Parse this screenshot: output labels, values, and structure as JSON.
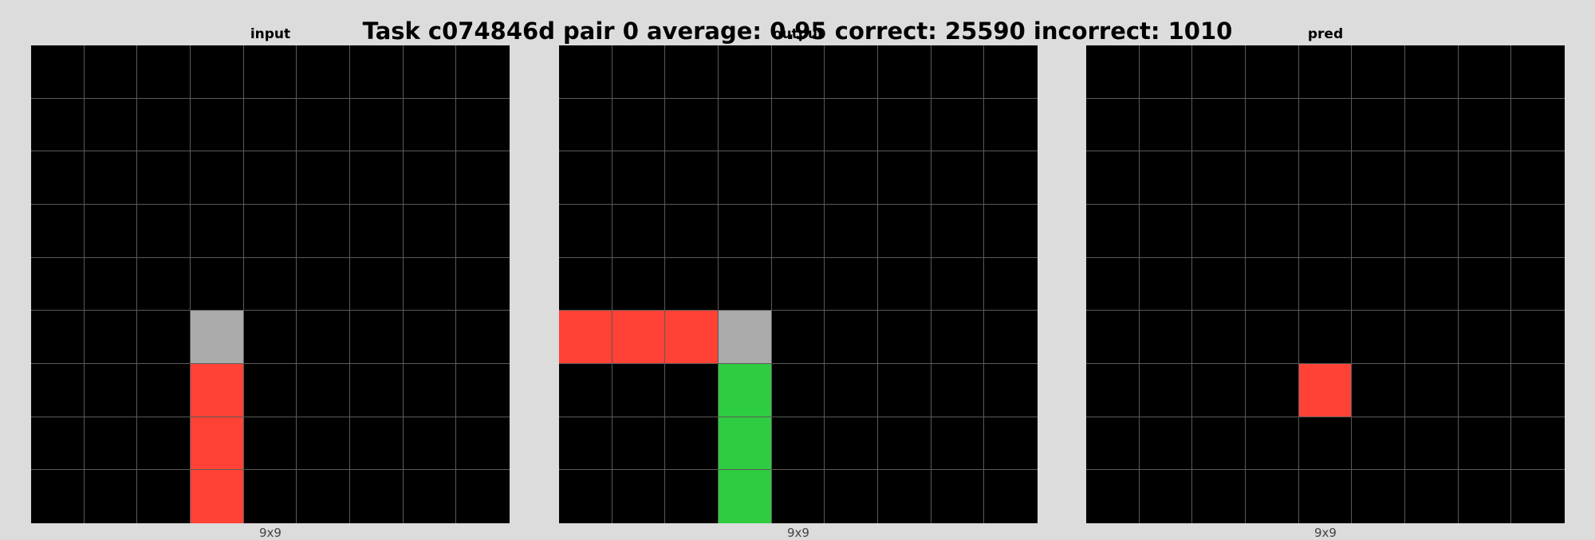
{
  "title": "Task c074846d pair 0 average: 0.95 correct: 25590 incorrect: 1010",
  "colors": {
    "0": "#000000",
    "2": "#ff4136",
    "3": "#2ecc40",
    "5": "#aaaaaa"
  },
  "panels": [
    {
      "title": "input",
      "size_label": "9x9",
      "grid": [
        [
          0,
          0,
          0,
          0,
          0,
          0,
          0,
          0,
          0
        ],
        [
          0,
          0,
          0,
          0,
          0,
          0,
          0,
          0,
          0
        ],
        [
          0,
          0,
          0,
          0,
          0,
          0,
          0,
          0,
          0
        ],
        [
          0,
          0,
          0,
          0,
          0,
          0,
          0,
          0,
          0
        ],
        [
          0,
          0,
          0,
          0,
          0,
          0,
          0,
          0,
          0
        ],
        [
          0,
          0,
          0,
          5,
          0,
          0,
          0,
          0,
          0
        ],
        [
          0,
          0,
          0,
          2,
          0,
          0,
          0,
          0,
          0
        ],
        [
          0,
          0,
          0,
          2,
          0,
          0,
          0,
          0,
          0
        ],
        [
          0,
          0,
          0,
          2,
          0,
          0,
          0,
          0,
          0
        ]
      ]
    },
    {
      "title": "output",
      "size_label": "9x9",
      "grid": [
        [
          0,
          0,
          0,
          0,
          0,
          0,
          0,
          0,
          0
        ],
        [
          0,
          0,
          0,
          0,
          0,
          0,
          0,
          0,
          0
        ],
        [
          0,
          0,
          0,
          0,
          0,
          0,
          0,
          0,
          0
        ],
        [
          0,
          0,
          0,
          0,
          0,
          0,
          0,
          0,
          0
        ],
        [
          0,
          0,
          0,
          0,
          0,
          0,
          0,
          0,
          0
        ],
        [
          2,
          2,
          2,
          5,
          0,
          0,
          0,
          0,
          0
        ],
        [
          0,
          0,
          0,
          3,
          0,
          0,
          0,
          0,
          0
        ],
        [
          0,
          0,
          0,
          3,
          0,
          0,
          0,
          0,
          0
        ],
        [
          0,
          0,
          0,
          3,
          0,
          0,
          0,
          0,
          0
        ]
      ]
    },
    {
      "title": "pred",
      "size_label": "9x9",
      "grid": [
        [
          0,
          0,
          0,
          0,
          0,
          0,
          0,
          0,
          0
        ],
        [
          0,
          0,
          0,
          0,
          0,
          0,
          0,
          0,
          0
        ],
        [
          0,
          0,
          0,
          0,
          0,
          0,
          0,
          0,
          0
        ],
        [
          0,
          0,
          0,
          0,
          0,
          0,
          0,
          0,
          0
        ],
        [
          0,
          0,
          0,
          0,
          0,
          0,
          0,
          0,
          0
        ],
        [
          0,
          0,
          0,
          0,
          0,
          0,
          0,
          0,
          0
        ],
        [
          0,
          0,
          0,
          0,
          2,
          0,
          0,
          0,
          0
        ],
        [
          0,
          0,
          0,
          0,
          0,
          0,
          0,
          0,
          0
        ],
        [
          0,
          0,
          0,
          0,
          0,
          0,
          0,
          0,
          0
        ]
      ]
    }
  ]
}
